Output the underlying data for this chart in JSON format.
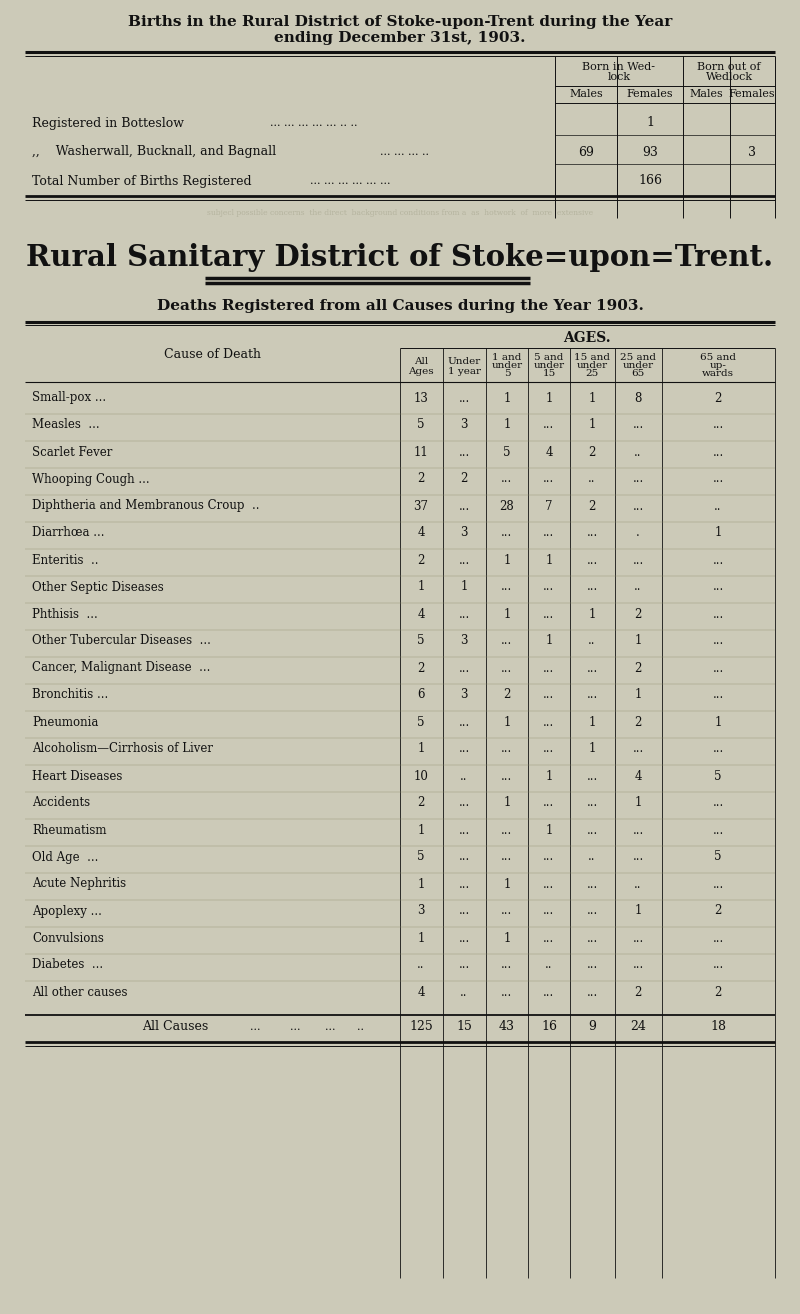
{
  "bg_color": "#cccab8",
  "title1": "Births in the Rural District of Stoke-upon-Trent during the Year",
  "title2": "ending December 31st, 1903.",
  "section2_title": "Rural Sanitary District of Stoke=upon=Trent.",
  "section2_subtitle": "Deaths Registered from all Causes during the Year 1903.",
  "births_rows": [
    {
      "label": "Registered in Botteslow",
      "dots": "... ... ... ... ... .. ..",
      "m_wed": "",
      "f_wed": "1",
      "m_out": "",
      "f_out": ""
    },
    {
      "label": ",,    Washerwall, Bucknall, and Bagnall",
      "dots": "... ... ... ..",
      "m_wed": "69",
      "f_wed": "93",
      "m_out": "",
      "f_out": "3"
    },
    {
      "label": "Total Number of Births Registered",
      "dots": "... ... ... ... ... ...",
      "m_wed": "",
      "f_wed": "",
      "m_out": "166",
      "f_out": "",
      "total": true
    }
  ],
  "deaths_headers": [
    "All\nAges",
    "Under\n1 year",
    "1 and\nunder\n5",
    "5 and\nunder\n15",
    "15 and\nunder\n25",
    "25 and\nunder\n65",
    "65 and\nup-\nwards"
  ],
  "deaths_rows": [
    {
      "cause": "Small-pox ...",
      "vals": [
        "13",
        "...",
        "1",
        "1",
        "1",
        "8",
        "2"
      ]
    },
    {
      "cause": "Measles  ...",
      "vals": [
        "5",
        "3",
        "1",
        "...",
        "1",
        "...",
        "..."
      ]
    },
    {
      "cause": "Scarlet Fever",
      "vals": [
        "11",
        "...",
        "5",
        "4",
        "2",
        "..",
        "..."
      ]
    },
    {
      "cause": "Whooping Cough ...",
      "vals": [
        "2",
        "2",
        "...",
        "...",
        "..",
        "...",
        "..."
      ]
    },
    {
      "cause": "Diphtheria and Membranous Croup  ..",
      "vals": [
        "37",
        "...",
        "28",
        "7",
        "2",
        "...",
        ".."
      ]
    },
    {
      "cause": "Diarrhœa ...",
      "vals": [
        "4",
        "3",
        "...",
        "...",
        "...",
        ".",
        "1"
      ]
    },
    {
      "cause": "Enteritis  ..",
      "vals": [
        "2",
        "...",
        "1",
        "1",
        "...",
        "...",
        "..."
      ]
    },
    {
      "cause": "Other Septic Diseases",
      "vals": [
        "1",
        "1",
        "...",
        "...",
        "...",
        "..",
        "..."
      ]
    },
    {
      "cause": "Phthisis  ...",
      "vals": [
        "4",
        "...",
        "1",
        "...",
        "1",
        "2",
        "..."
      ]
    },
    {
      "cause": "Other Tubercular Diseases  ...",
      "vals": [
        "5",
        "3",
        "...",
        "1",
        "..",
        "1",
        "..."
      ]
    },
    {
      "cause": "Cancer, Malignant Disease  ...",
      "vals": [
        "2",
        "...",
        "...",
        "...",
        "...",
        "2",
        "..."
      ]
    },
    {
      "cause": "Bronchitis ...",
      "vals": [
        "6",
        "3",
        "2",
        "...",
        "...",
        "1",
        "..."
      ]
    },
    {
      "cause": "Pneumonia",
      "vals": [
        "5",
        "...",
        "1",
        "...",
        "1",
        "2",
        "1"
      ]
    },
    {
      "cause": "Alcoholism—Cirrhosis of Liver",
      "vals": [
        "1",
        "...",
        "...",
        "...",
        "1",
        "...",
        "..."
      ]
    },
    {
      "cause": "Heart Diseases",
      "vals": [
        "10",
        "..",
        "...",
        "1",
        "...",
        "4",
        "5"
      ]
    },
    {
      "cause": "Accidents",
      "vals": [
        "2",
        "...",
        "1",
        "...",
        "...",
        "1",
        "..."
      ]
    },
    {
      "cause": "Rheumatism",
      "vals": [
        "1",
        "...",
        "...",
        "1",
        "...",
        "...",
        "..."
      ]
    },
    {
      "cause": "Old Age  ...",
      "vals": [
        "5",
        "...",
        "...",
        "...",
        "..",
        "...",
        "5"
      ]
    },
    {
      "cause": "Acute Nephritis",
      "vals": [
        "1",
        "...",
        "1",
        "...",
        "...",
        "..",
        "..."
      ]
    },
    {
      "cause": "Apoplexy ...",
      "vals": [
        "3",
        "...",
        "...",
        "...",
        "...",
        "1",
        "2"
      ]
    },
    {
      "cause": "Convulsions",
      "vals": [
        "1",
        "...",
        "1",
        "...",
        "...",
        "...",
        "..."
      ]
    },
    {
      "cause": "Diabetes  ...",
      "vals": [
        "..",
        "...",
        "...",
        "..",
        "...",
        "...",
        "..."
      ]
    },
    {
      "cause": "All other causes",
      "vals": [
        "4",
        "..",
        "...",
        "...",
        "...",
        "2",
        "2"
      ]
    }
  ],
  "deaths_totals": [
    "125",
    "15",
    "43",
    "16",
    "9",
    "24",
    "18"
  ]
}
